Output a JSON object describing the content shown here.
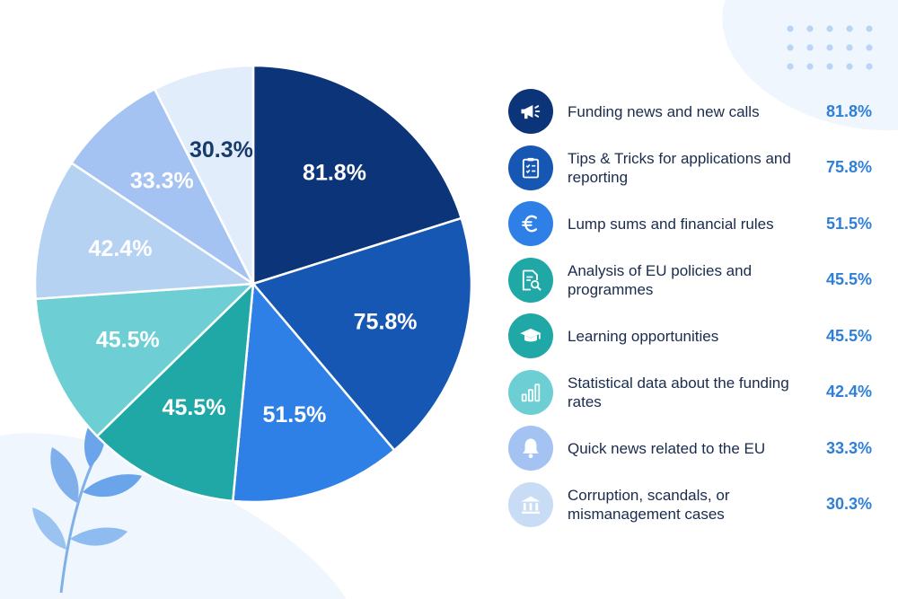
{
  "chart_data": {
    "type": "pie",
    "title": "",
    "slices": [
      {
        "label": "Funding news and new calls",
        "value": 81.8,
        "display": "81.8%",
        "color": "#0c3478",
        "label_color": "#ffffff",
        "icon": "megaphone-icon"
      },
      {
        "label": "Tips & Tricks for applications and reporting",
        "value": 75.8,
        "display": "75.8%",
        "color": "#1557b3",
        "label_color": "#ffffff",
        "icon": "clipboard-checklist-icon"
      },
      {
        "label": "Lump sums and financial rules",
        "value": 51.5,
        "display": "51.5%",
        "color": "#2f80e6",
        "label_color": "#ffffff",
        "icon": "euro-icon"
      },
      {
        "label": "Analysis of EU policies and programmes",
        "value": 45.5,
        "display": "45.5%",
        "color": "#1fa8a6",
        "label_color": "#ffffff",
        "icon": "document-search-icon"
      },
      {
        "label": "Learning opportunities",
        "value": 45.5,
        "display": "45.5%",
        "color": "#6dcfd3",
        "label_color": "#ffffff",
        "icon": "graduation-cap-icon"
      },
      {
        "label": "Statistical data about the funding rates",
        "value": 42.4,
        "display": "42.4%",
        "color": "#b5d2f3",
        "label_color": "#ffffff",
        "icon": "bar-chart-icon"
      },
      {
        "label": "Quick news related to the EU",
        "value": 33.3,
        "display": "33.3%",
        "color": "#a4c3f2",
        "label_color": "#ffffff",
        "icon": "bell-icon"
      },
      {
        "label": "Corruption, scandals, or mismanagement cases",
        "value": 30.3,
        "display": "30.3%",
        "color": "#e2edfb",
        "label_color": "#183a6b",
        "icon": "bank-building-icon"
      }
    ]
  },
  "legend": {
    "items": [
      {
        "label": "Funding news and new calls",
        "value": "81.8%",
        "icon": "megaphone-icon",
        "icon_bg": "#0c3478",
        "icon_fg": "#ffffff"
      },
      {
        "label": "Tips & Tricks for applications and reporting",
        "value": "75.8%",
        "icon": "clipboard-checklist-icon",
        "icon_bg": "#1557b3",
        "icon_fg": "#ffffff"
      },
      {
        "label": "Lump sums and financial rules",
        "value": "51.5%",
        "icon": "euro-icon",
        "icon_bg": "#2f80e6",
        "icon_fg": "#ffffff"
      },
      {
        "label": "Analysis of EU policies and programmes",
        "value": "45.5%",
        "icon": "document-search-icon",
        "icon_bg": "#1fa8a6",
        "icon_fg": "#ffffff"
      },
      {
        "label": "Learning opportunities",
        "value": "45.5%",
        "icon": "graduation-cap-icon",
        "icon_bg": "#1fa8a6",
        "icon_fg": "#ffffff"
      },
      {
        "label": "Statistical data about the funding rates",
        "value": "42.4%",
        "icon": "bar-chart-icon",
        "icon_bg": "#6dcfd3",
        "icon_fg": "#ffffff"
      },
      {
        "label": "Quick news related to the EU",
        "value": "33.3%",
        "icon": "bell-icon",
        "icon_bg": "#a4c3f2",
        "icon_fg": "#ffffff"
      },
      {
        "label": "Corruption, scandals, or mismanagement cases",
        "value": "30.3%",
        "icon": "bank-building-icon",
        "icon_bg": "#c9dcf5",
        "icon_fg": "#ffffff"
      }
    ]
  }
}
